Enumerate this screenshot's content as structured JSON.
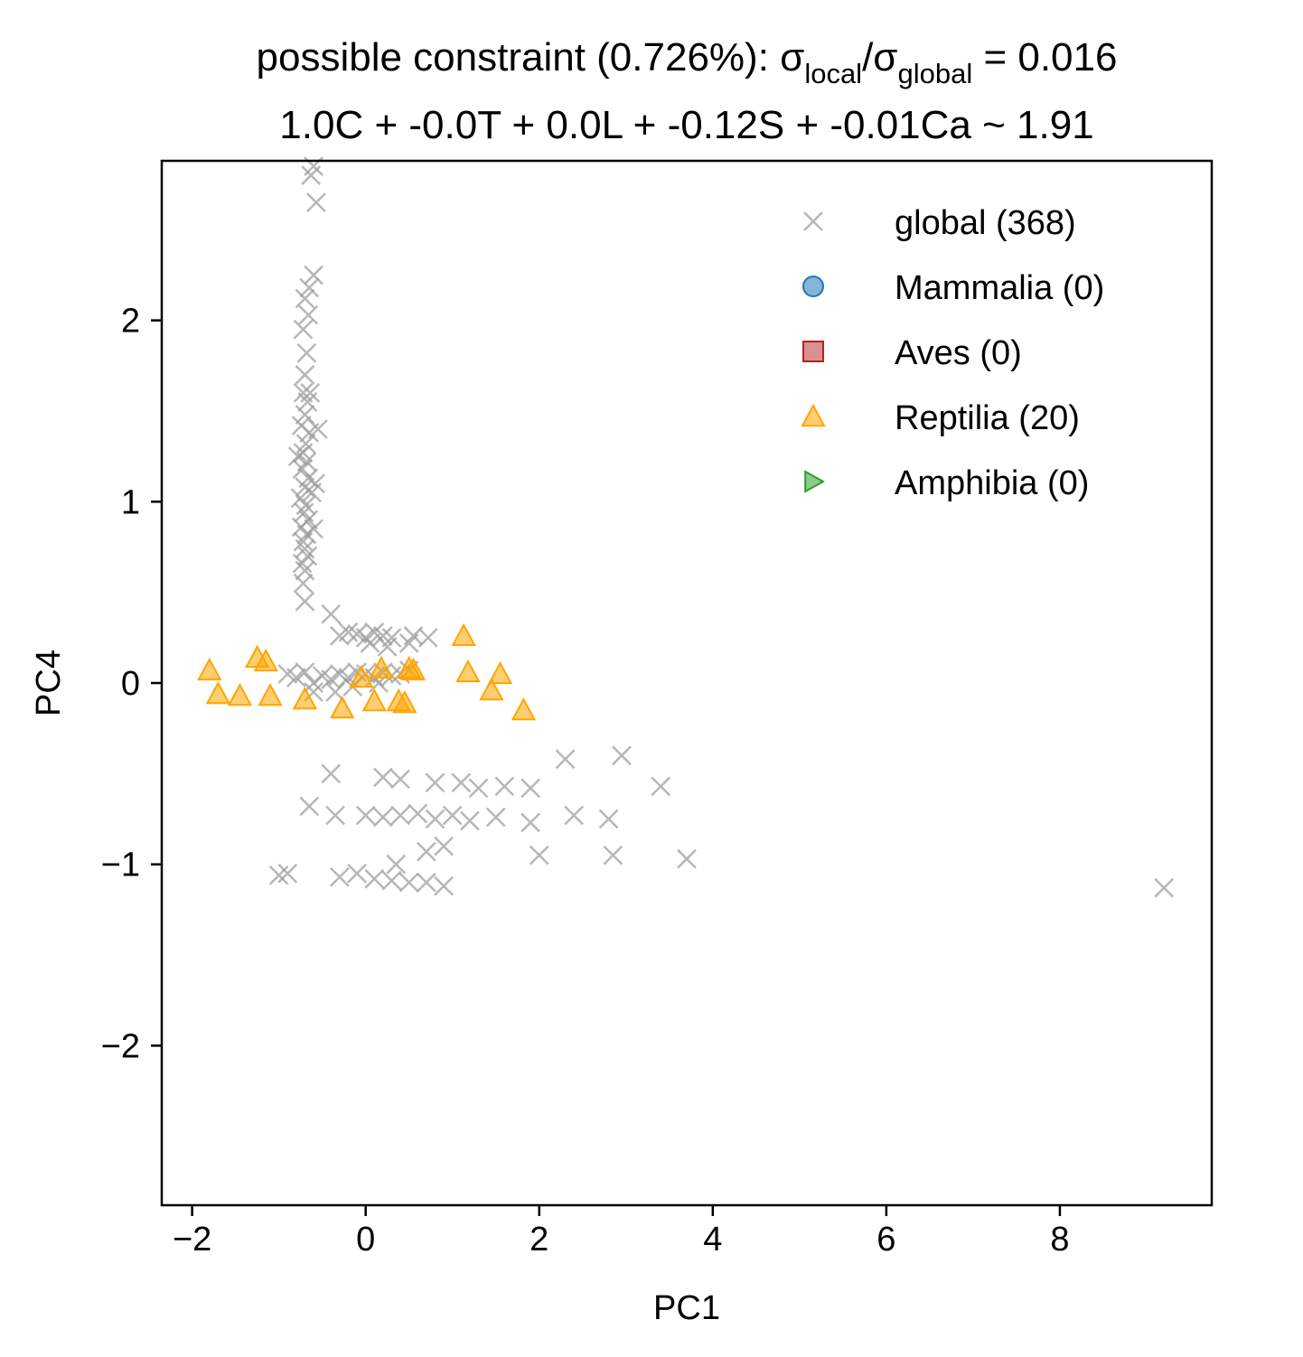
{
  "chart_data": {
    "type": "scatter",
    "title_line1": {
      "prefix": "possible constraint (0.726%): σ",
      "sub1": "local",
      "mid": "/σ",
      "sub2": "global",
      "suffix": " = 0.016"
    },
    "title_line2": "1.0C + -0.0T + 0.0L + -0.12S + -0.01Ca ~ 1.91",
    "xlabel": "PC1",
    "ylabel": "PC4",
    "xlim": [
      -2.35,
      9.75
    ],
    "ylim": [
      -2.88,
      2.88
    ],
    "xticks": [
      -2,
      0,
      2,
      4,
      6,
      8
    ],
    "xtick_labels": [
      "−2",
      "0",
      "2",
      "4",
      "6",
      "8"
    ],
    "yticks": [
      -2,
      -1,
      0,
      1,
      2
    ],
    "ytick_labels": [
      "−2",
      "−1",
      "0",
      "1",
      "2"
    ],
    "grid": false,
    "legend_position": "top-right",
    "legend": [
      {
        "label": "global (368)",
        "marker": "x",
        "color": "#999999"
      },
      {
        "label": "Mammalia (0)",
        "marker": "circle",
        "color": "#1f77b4"
      },
      {
        "label": "Aves (0)",
        "marker": "square",
        "color": "#b22222"
      },
      {
        "label": "Reptilia (20)",
        "marker": "triangle-up",
        "color": "#ffa500"
      },
      {
        "label": "Amphibia (0)",
        "marker": "triangle-right",
        "color": "#2ca02c"
      }
    ],
    "series": [
      {
        "name": "global (368)",
        "marker": "x",
        "color": "#999999",
        "points": [
          [
            -0.6,
            2.85
          ],
          [
            -0.63,
            2.8
          ],
          [
            -0.57,
            2.65
          ],
          [
            -0.6,
            2.25
          ],
          [
            -0.65,
            2.18
          ],
          [
            -0.7,
            2.12
          ],
          [
            -0.66,
            2.03
          ],
          [
            -0.72,
            1.95
          ],
          [
            -0.68,
            1.82
          ],
          [
            -0.7,
            1.7
          ],
          [
            -0.72,
            1.6
          ],
          [
            -0.67,
            1.55
          ],
          [
            -0.7,
            1.48
          ],
          [
            -0.74,
            1.42
          ],
          [
            -0.65,
            1.38
          ],
          [
            -0.69,
            1.32
          ],
          [
            -0.72,
            1.27
          ],
          [
            -0.68,
            1.22
          ],
          [
            -0.73,
            1.18
          ],
          [
            -0.66,
            1.13
          ],
          [
            -0.7,
            1.08
          ],
          [
            -0.62,
            1.05
          ],
          [
            -0.75,
            1.02
          ],
          [
            -0.69,
            0.98
          ],
          [
            -0.71,
            0.94
          ],
          [
            -0.66,
            0.9
          ],
          [
            -0.74,
            0.86
          ],
          [
            -0.68,
            0.82
          ],
          [
            -0.72,
            0.78
          ],
          [
            -0.7,
            0.74
          ],
          [
            -0.67,
            0.7
          ],
          [
            -0.73,
            0.66
          ],
          [
            -0.7,
            0.62
          ],
          [
            -0.72,
            0.55
          ],
          [
            -0.7,
            0.45
          ],
          [
            -0.55,
            1.4
          ],
          [
            -0.58,
            1.1
          ],
          [
            -0.6,
            0.85
          ],
          [
            -0.78,
            1.25
          ],
          [
            -0.64,
            1.6
          ],
          [
            -0.4,
            0.38
          ],
          [
            -0.2,
            0.28
          ],
          [
            -0.1,
            0.27
          ],
          [
            0.0,
            0.25
          ],
          [
            0.1,
            0.28
          ],
          [
            0.2,
            0.26
          ],
          [
            0.3,
            0.25
          ],
          [
            0.5,
            0.22
          ],
          [
            0.55,
            0.26
          ],
          [
            0.72,
            0.25
          ],
          [
            -0.3,
            0.26
          ],
          [
            0.05,
            0.22
          ],
          [
            0.25,
            0.2
          ],
          [
            -0.9,
            0.05
          ],
          [
            -0.8,
            0.03
          ],
          [
            -0.7,
            0.06
          ],
          [
            -0.5,
            0.04
          ],
          [
            -0.4,
            0.02
          ],
          [
            -0.3,
            0.05
          ],
          [
            -0.2,
            0.03
          ],
          [
            -0.1,
            0.06
          ],
          [
            0.0,
            0.05
          ],
          [
            0.1,
            0.03
          ],
          [
            0.2,
            0.06
          ],
          [
            0.3,
            0.04
          ],
          [
            0.4,
            0.05
          ],
          [
            0.5,
            0.07
          ],
          [
            -0.6,
            0.0
          ],
          [
            -0.35,
            -0.05
          ],
          [
            -0.15,
            -0.02
          ],
          [
            0.15,
            0.0
          ],
          [
            -0.6,
            -0.05
          ],
          [
            -0.4,
            -0.5
          ],
          [
            0.2,
            -0.52
          ],
          [
            0.4,
            -0.53
          ],
          [
            0.8,
            -0.55
          ],
          [
            1.1,
            -0.55
          ],
          [
            1.3,
            -0.58
          ],
          [
            1.6,
            -0.57
          ],
          [
            1.9,
            -0.58
          ],
          [
            2.3,
            -0.42
          ],
          [
            2.95,
            -0.4
          ],
          [
            3.4,
            -0.57
          ],
          [
            -0.65,
            -0.68
          ],
          [
            -0.35,
            -0.73
          ],
          [
            0.0,
            -0.73
          ],
          [
            0.2,
            -0.74
          ],
          [
            0.4,
            -0.73
          ],
          [
            0.6,
            -0.72
          ],
          [
            0.8,
            -0.75
          ],
          [
            1.0,
            -0.73
          ],
          [
            1.2,
            -0.76
          ],
          [
            1.5,
            -0.74
          ],
          [
            1.9,
            -0.77
          ],
          [
            2.4,
            -0.73
          ],
          [
            2.8,
            -0.75
          ],
          [
            0.7,
            -0.93
          ],
          [
            0.9,
            -0.9
          ],
          [
            2.0,
            -0.95
          ],
          [
            2.85,
            -0.95
          ],
          [
            3.7,
            -0.97
          ],
          [
            -1.0,
            -1.06
          ],
          [
            -0.9,
            -1.05
          ],
          [
            -0.3,
            -1.07
          ],
          [
            -0.1,
            -1.05
          ],
          [
            0.1,
            -1.08
          ],
          [
            0.3,
            -1.09
          ],
          [
            0.5,
            -1.1
          ],
          [
            0.7,
            -1.1
          ],
          [
            0.9,
            -1.12
          ],
          [
            0.35,
            -1.0
          ],
          [
            9.2,
            -1.13
          ]
        ]
      },
      {
        "name": "Reptilia (20)",
        "marker": "triangle-up",
        "color": "#ffa500",
        "points": [
          [
            -1.8,
            0.07
          ],
          [
            -1.7,
            -0.06
          ],
          [
            -1.45,
            -0.07
          ],
          [
            -1.25,
            0.14
          ],
          [
            -1.15,
            0.12
          ],
          [
            -1.1,
            -0.07
          ],
          [
            -0.7,
            -0.09
          ],
          [
            -0.27,
            -0.14
          ],
          [
            -0.05,
            0.03
          ],
          [
            0.18,
            0.08
          ],
          [
            0.1,
            -0.1
          ],
          [
            0.38,
            -0.1
          ],
          [
            0.45,
            -0.11
          ],
          [
            0.5,
            0.08
          ],
          [
            0.55,
            0.07
          ],
          [
            1.13,
            0.26
          ],
          [
            1.18,
            0.06
          ],
          [
            1.45,
            -0.04
          ],
          [
            1.55,
            0.05
          ],
          [
            1.82,
            -0.15
          ]
        ]
      }
    ]
  }
}
